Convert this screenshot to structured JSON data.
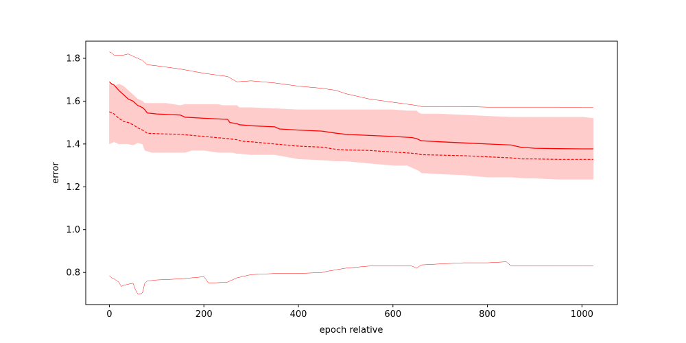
{
  "chart_data": {
    "type": "line",
    "title": "",
    "xlabel": "epoch relative",
    "ylabel": "error",
    "xlim": [
      -50,
      1075
    ],
    "ylim": [
      0.65,
      1.88
    ],
    "xticks": [
      0,
      200,
      400,
      600,
      800,
      1000
    ],
    "yticks": [
      0.8,
      1.0,
      1.2,
      1.4,
      1.6,
      1.8
    ],
    "xtick_labels": [
      "0",
      "200",
      "400",
      "600",
      "800",
      "1000"
    ],
    "ytick_labels": [
      "0.8",
      "1.0",
      "1.2",
      "1.4",
      "1.6",
      "1.8"
    ],
    "grid": false,
    "color": "#ff0000",
    "band_color": "#ffcccc",
    "band": {
      "x": [
        0,
        10,
        20,
        30,
        40,
        50,
        60,
        70,
        75,
        90,
        100,
        120,
        150,
        160,
        175,
        200,
        230,
        240,
        250,
        255,
        260,
        270,
        275,
        300,
        350,
        400,
        450,
        480,
        500,
        550,
        600,
        630,
        650,
        655,
        660,
        700,
        750,
        800,
        850,
        880,
        900,
        950,
        1000,
        1024
      ],
      "upper": [
        1.68,
        1.67,
        1.68,
        1.67,
        1.65,
        1.63,
        1.61,
        1.6,
        1.59,
        1.59,
        1.59,
        1.59,
        1.58,
        1.585,
        1.585,
        1.585,
        1.585,
        1.58,
        1.58,
        1.58,
        1.58,
        1.58,
        1.57,
        1.57,
        1.565,
        1.56,
        1.56,
        1.56,
        1.56,
        1.56,
        1.56,
        1.555,
        1.555,
        1.545,
        1.54,
        1.54,
        1.535,
        1.53,
        1.525,
        1.525,
        1.525,
        1.525,
        1.525,
        1.52
      ],
      "lower": [
        1.4,
        1.41,
        1.4,
        1.4,
        1.4,
        1.395,
        1.405,
        1.4,
        1.37,
        1.36,
        1.36,
        1.36,
        1.36,
        1.36,
        1.37,
        1.37,
        1.36,
        1.36,
        1.36,
        1.36,
        1.36,
        1.355,
        1.355,
        1.35,
        1.35,
        1.33,
        1.325,
        1.32,
        1.32,
        1.31,
        1.3,
        1.3,
        1.28,
        1.275,
        1.265,
        1.26,
        1.255,
        1.245,
        1.245,
        1.24,
        1.24,
        1.235,
        1.235,
        1.235
      ]
    },
    "series": [
      {
        "style": "solid",
        "x": [
          0,
          5,
          10,
          20,
          30,
          40,
          50,
          60,
          70,
          75,
          80,
          100,
          150,
          160,
          200,
          250,
          255,
          270,
          275,
          300,
          350,
          360,
          400,
          450,
          480,
          500,
          550,
          600,
          640,
          650,
          660,
          700,
          750,
          800,
          850,
          870,
          900,
          950,
          1000,
          1024
        ],
        "y": [
          1.69,
          1.68,
          1.675,
          1.65,
          1.63,
          1.61,
          1.6,
          1.58,
          1.57,
          1.56,
          1.545,
          1.54,
          1.535,
          1.525,
          1.52,
          1.515,
          1.5,
          1.495,
          1.49,
          1.485,
          1.48,
          1.47,
          1.465,
          1.46,
          1.45,
          1.445,
          1.44,
          1.435,
          1.43,
          1.425,
          1.415,
          1.41,
          1.405,
          1.4,
          1.395,
          1.385,
          1.38,
          1.378,
          1.377,
          1.377
        ]
      },
      {
        "style": "dashed",
        "x": [
          0,
          10,
          20,
          30,
          40,
          50,
          60,
          70,
          80,
          100,
          150,
          200,
          250,
          270,
          280,
          300,
          350,
          400,
          450,
          480,
          500,
          550,
          600,
          620,
          650,
          660,
          700,
          750,
          800,
          850,
          870,
          900,
          950,
          1000,
          1024
        ],
        "y": [
          1.55,
          1.54,
          1.52,
          1.505,
          1.5,
          1.49,
          1.475,
          1.465,
          1.45,
          1.448,
          1.445,
          1.435,
          1.425,
          1.42,
          1.413,
          1.41,
          1.4,
          1.39,
          1.385,
          1.375,
          1.372,
          1.37,
          1.362,
          1.36,
          1.355,
          1.35,
          1.348,
          1.345,
          1.34,
          1.335,
          1.33,
          1.33,
          1.328,
          1.328,
          1.328
        ]
      },
      {
        "style": "thin",
        "x": [
          0,
          5,
          10,
          20,
          30,
          40,
          50,
          60,
          70,
          80,
          100,
          150,
          200,
          250,
          270,
          300,
          350,
          400,
          450,
          480,
          500,
          550,
          600,
          650,
          660,
          700,
          750,
          800,
          850,
          900,
          950,
          1000,
          1024
        ],
        "y": [
          1.83,
          1.825,
          1.815,
          1.815,
          1.815,
          1.82,
          1.81,
          1.8,
          1.79,
          1.77,
          1.765,
          1.75,
          1.73,
          1.715,
          1.69,
          1.695,
          1.685,
          1.67,
          1.66,
          1.65,
          1.635,
          1.61,
          1.595,
          1.58,
          1.575,
          1.575,
          1.575,
          1.572,
          1.572,
          1.572,
          1.572,
          1.57,
          1.57
        ]
      },
      {
        "style": "thin",
        "x": [
          0,
          5,
          10,
          20,
          25,
          30,
          40,
          50,
          55,
          60,
          65,
          70,
          75,
          80,
          100,
          150,
          200,
          210,
          250,
          270,
          300,
          350,
          400,
          450,
          460,
          500,
          550,
          600,
          640,
          650,
          660,
          700,
          750,
          800,
          840,
          850,
          900,
          950,
          1000,
          1024
        ],
        "y": [
          0.785,
          0.775,
          0.77,
          0.755,
          0.735,
          0.74,
          0.745,
          0.75,
          0.72,
          0.7,
          0.7,
          0.705,
          0.75,
          0.76,
          0.765,
          0.77,
          0.78,
          0.75,
          0.755,
          0.775,
          0.79,
          0.795,
          0.795,
          0.8,
          0.805,
          0.82,
          0.83,
          0.83,
          0.83,
          0.82,
          0.835,
          0.84,
          0.845,
          0.845,
          0.85,
          0.83,
          0.83,
          0.83,
          0.83,
          0.83
        ]
      }
    ]
  }
}
